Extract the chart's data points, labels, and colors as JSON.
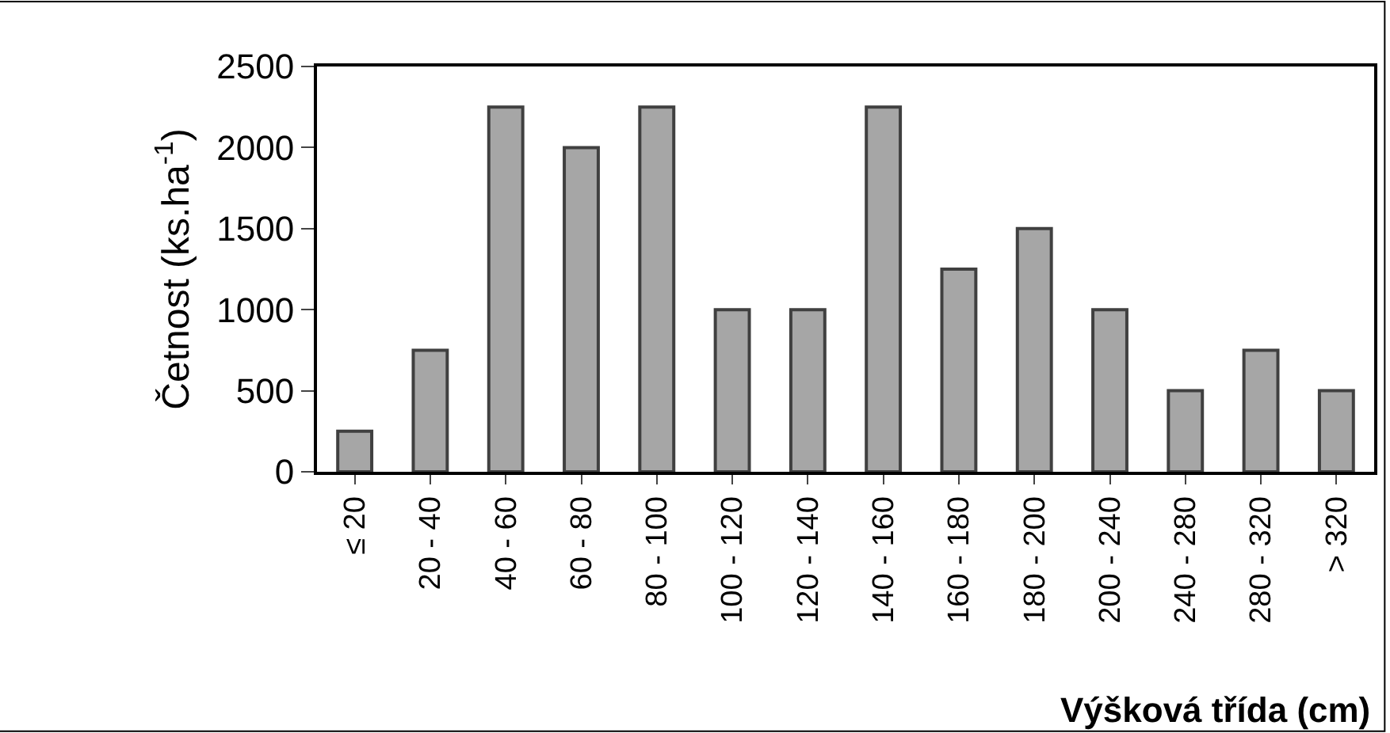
{
  "chart_data": {
    "type": "bar",
    "xlabel": "Výšková třída (cm)",
    "ylabel": "Četnost (ks.ha$^{-1}$)",
    "categories": [
      "≤ 20",
      "20 - 40",
      "40 - 60",
      "60 - 80",
      "80 - 100",
      "100 - 120",
      "120 - 140",
      "140 - 160",
      "160 - 180",
      "180 - 200",
      "200 - 240",
      "240 - 280",
      "280 - 320",
      "> 320"
    ],
    "values": [
      250,
      750,
      2250,
      2000,
      2250,
      1000,
      1000,
      2250,
      1250,
      1500,
      1000,
      500,
      750,
      500
    ],
    "color": "#a6a6a6",
    "ylim": [
      0,
      2500
    ],
    "yticks": [
      0,
      500,
      1000,
      1500,
      2000,
      2500
    ]
  }
}
